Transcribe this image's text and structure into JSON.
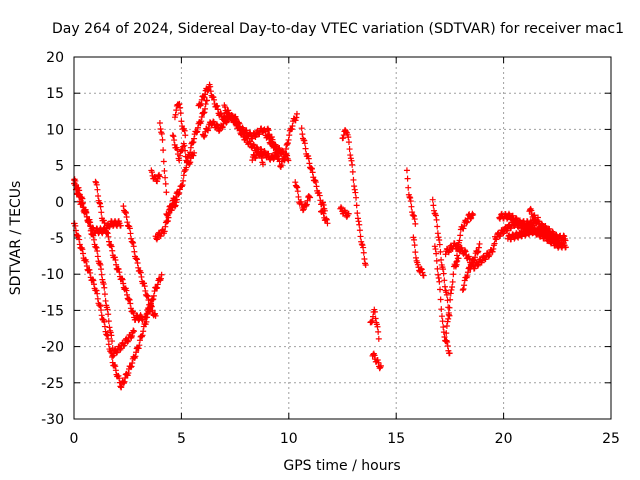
{
  "chart_data": {
    "type": "scatter",
    "title": "Day 264 of 2024, Sidereal Day-to-day VTEC variation (SDTVAR) for receiver mac1",
    "xlabel": "GPS time / hours",
    "ylabel": "SDTVAR / TECUs",
    "xlim": [
      0,
      25
    ],
    "ylim": [
      -30,
      20
    ],
    "xticks": [
      0,
      5,
      10,
      15,
      20,
      25
    ],
    "yticks": [
      -30,
      -25,
      -20,
      -15,
      -10,
      -5,
      0,
      5,
      10,
      15,
      20
    ],
    "grid": true,
    "marker": "+",
    "series": [
      {
        "name": "SDTVAR",
        "color": "#ff0000",
        "tracks": [
          {
            "t0": 0.0,
            "t1": 2.2,
            "pts": [
              [
                0.0,
                -3
              ],
              [
                0.5,
                -8
              ],
              [
                1.0,
                -12
              ],
              [
                1.5,
                -18
              ],
              [
                1.8,
                -22
              ],
              [
                2.2,
                -25.5
              ]
            ]
          },
          {
            "t0": 2.2,
            "t1": 3.6,
            "pts": [
              [
                2.2,
                -25.5
              ],
              [
                2.6,
                -23
              ],
              [
                3.0,
                -20
              ],
              [
                3.3,
                -17
              ],
              [
                3.6,
                -14
              ]
            ]
          },
          {
            "t0": 0.0,
            "t1": 1.8,
            "pts": [
              [
                0.0,
                3
              ],
              [
                0.3,
                1
              ],
              [
                0.7,
                -3
              ],
              [
                1.0,
                -6
              ],
              [
                1.3,
                -10
              ],
              [
                1.5,
                -14
              ],
              [
                1.8,
                -20
              ]
            ]
          },
          {
            "t0": 1.8,
            "t1": 2.8,
            "pts": [
              [
                1.8,
                -21
              ],
              [
                2.2,
                -20
              ],
              [
                2.5,
                -19
              ],
              [
                2.8,
                -18
              ]
            ]
          },
          {
            "t0": 0.0,
            "t1": 1.4,
            "pts": [
              [
                0.0,
                2.5
              ],
              [
                0.3,
                0
              ],
              [
                0.6,
                -2
              ],
              [
                0.9,
                -4
              ],
              [
                1.2,
                -4
              ],
              [
                1.4,
                -4
              ]
            ]
          },
          {
            "t0": 1.4,
            "t1": 2.2,
            "pts": [
              [
                1.4,
                -4
              ],
              [
                1.7,
                -3
              ],
              [
                2.0,
                -3
              ],
              [
                2.2,
                -3
              ]
            ]
          },
          {
            "t0": 1.0,
            "t1": 3.2,
            "pts": [
              [
                1.0,
                3
              ],
              [
                1.3,
                -2
              ],
              [
                1.6,
                -5
              ],
              [
                2.0,
                -9
              ],
              [
                2.5,
                -13
              ],
              [
                2.8,
                -16
              ],
              [
                3.2,
                -16
              ]
            ]
          },
          {
            "t0": 2.3,
            "t1": 3.8,
            "pts": [
              [
                2.3,
                -0.5
              ],
              [
                2.6,
                -4
              ],
              [
                2.9,
                -8
              ],
              [
                3.2,
                -11
              ],
              [
                3.5,
                -14
              ],
              [
                3.8,
                -16
              ]
            ]
          },
          {
            "t0": 3.3,
            "t1": 4.1,
            "pts": [
              [
                3.3,
                -16
              ],
              [
                3.6,
                -14
              ],
              [
                3.8,
                -12
              ],
              [
                4.1,
                -10
              ]
            ]
          },
          {
            "t0": 3.6,
            "t1": 4.0,
            "pts": [
              [
                3.6,
                4
              ],
              [
                3.8,
                3
              ],
              [
                4.0,
                3.5
              ]
            ]
          },
          {
            "t0": 4.0,
            "t1": 4.3,
            "pts": [
              [
                4.0,
                11
              ],
              [
                4.1,
                9
              ],
              [
                4.2,
                5
              ],
              [
                4.3,
                1
              ]
            ]
          },
          {
            "t0": 3.8,
            "t1": 4.8,
            "pts": [
              [
                3.8,
                -5
              ],
              [
                4.2,
                -4
              ],
              [
                4.5,
                -1
              ],
              [
                4.8,
                0
              ]
            ]
          },
          {
            "t0": 4.3,
            "t1": 6.2,
            "pts": [
              [
                4.3,
                -2
              ],
              [
                4.6,
                0
              ],
              [
                5.0,
                2
              ],
              [
                5.3,
                6
              ],
              [
                5.6,
                9
              ],
              [
                6.0,
                12
              ],
              [
                6.2,
                14
              ]
            ]
          },
          {
            "t0": 4.6,
            "t1": 5.6,
            "pts": [
              [
                4.6,
                9
              ],
              [
                4.9,
                6
              ],
              [
                5.1,
                8
              ],
              [
                5.3,
                5
              ],
              [
                5.6,
                7
              ]
            ]
          },
          {
            "t0": 4.7,
            "t1": 5.2,
            "pts": [
              [
                4.7,
                12
              ],
              [
                4.9,
                14
              ],
              [
                5.0,
                11
              ],
              [
                5.2,
                9
              ]
            ]
          },
          {
            "t0": 5.8,
            "t1": 7.2,
            "pts": [
              [
                5.8,
                13
              ],
              [
                6.1,
                15
              ],
              [
                6.3,
                16
              ],
              [
                6.5,
                14
              ],
              [
                6.8,
                12
              ],
              [
                7.2,
                11
              ]
            ]
          },
          {
            "t0": 6.0,
            "t1": 7.6,
            "pts": [
              [
                6.0,
                9
              ],
              [
                6.4,
                11
              ],
              [
                6.8,
                10
              ],
              [
                7.2,
                12
              ],
              [
                7.6,
                11
              ]
            ]
          },
          {
            "t0": 7.0,
            "t1": 8.8,
            "pts": [
              [
                7.0,
                13
              ],
              [
                7.5,
                11
              ],
              [
                7.9,
                9
              ],
              [
                8.2,
                8
              ],
              [
                8.6,
                7
              ],
              [
                8.8,
                5.5
              ]
            ]
          },
          {
            "t0": 7.4,
            "t1": 9.6,
            "pts": [
              [
                7.4,
                12
              ],
              [
                7.8,
                10
              ],
              [
                8.3,
                9
              ],
              [
                8.8,
                10
              ],
              [
                9.2,
                8
              ],
              [
                9.6,
                7
              ]
            ]
          },
          {
            "t0": 8.3,
            "t1": 10.0,
            "pts": [
              [
                8.3,
                6
              ],
              [
                8.7,
                7
              ],
              [
                9.2,
                6
              ],
              [
                9.6,
                7
              ],
              [
                10.0,
                6
              ]
            ]
          },
          {
            "t0": 9.0,
            "t1": 10.4,
            "pts": [
              [
                9.0,
                10
              ],
              [
                9.3,
                8
              ],
              [
                9.6,
                5
              ],
              [
                9.8,
                6
              ],
              [
                10.0,
                9
              ],
              [
                10.2,
                11
              ],
              [
                10.4,
                12
              ]
            ]
          },
          {
            "t0": 10.3,
            "t1": 11.0,
            "pts": [
              [
                10.3,
                3
              ],
              [
                10.5,
                0
              ],
              [
                10.7,
                -1
              ],
              [
                11.0,
                1
              ]
            ]
          },
          {
            "t0": 10.6,
            "t1": 11.7,
            "pts": [
              [
                10.6,
                10
              ],
              [
                10.8,
                7
              ],
              [
                11.0,
                5
              ],
              [
                11.3,
                2
              ],
              [
                11.5,
                0
              ],
              [
                11.7,
                -1
              ]
            ]
          },
          {
            "t0": 11.5,
            "t1": 11.8,
            "pts": [
              [
                11.5,
                -1
              ],
              [
                11.8,
                -3
              ]
            ]
          },
          {
            "t0": 12.4,
            "t1": 12.8,
            "pts": [
              [
                12.4,
                -1
              ],
              [
                12.6,
                -1.5
              ],
              [
                12.8,
                -2
              ]
            ]
          },
          {
            "t0": 12.5,
            "t1": 13.6,
            "pts": [
              [
                12.5,
                9
              ],
              [
                12.7,
                10
              ],
              [
                12.9,
                6
              ],
              [
                13.1,
                1
              ],
              [
                13.3,
                -4
              ],
              [
                13.6,
                -9
              ]
            ]
          },
          {
            "t0": 13.8,
            "t1": 14.2,
            "pts": [
              [
                13.8,
                -17
              ],
              [
                14.0,
                -15
              ],
              [
                14.2,
                -19
              ]
            ]
          },
          {
            "t0": 13.9,
            "t1": 14.3,
            "pts": [
              [
                13.9,
                -21
              ],
              [
                14.1,
                -22
              ],
              [
                14.3,
                -23
              ]
            ]
          },
          {
            "t0": 15.5,
            "t1": 15.9,
            "pts": [
              [
                15.5,
                4
              ],
              [
                15.6,
                1
              ],
              [
                15.8,
                -2
              ],
              [
                15.9,
                -3
              ]
            ]
          },
          {
            "t0": 15.8,
            "t1": 16.3,
            "pts": [
              [
                15.8,
                -5
              ],
              [
                16.0,
                -9
              ],
              [
                16.3,
                -10
              ]
            ]
          },
          {
            "t0": 16.8,
            "t1": 17.5,
            "pts": [
              [
                16.8,
                -6
              ],
              [
                17.0,
                -11
              ],
              [
                17.2,
                -18
              ],
              [
                17.5,
                -21
              ]
            ]
          },
          {
            "t0": 16.7,
            "t1": 17.5,
            "pts": [
              [
                16.7,
                0
              ],
              [
                16.9,
                -3
              ],
              [
                17.1,
                -8
              ],
              [
                17.3,
                -12
              ],
              [
                17.5,
                -16
              ]
            ]
          },
          {
            "t0": 17.3,
            "t1": 17.9,
            "pts": [
              [
                17.3,
                -19
              ],
              [
                17.5,
                -14
              ],
              [
                17.7,
                -9
              ],
              [
                17.9,
                -8
              ]
            ]
          },
          {
            "t0": 17.8,
            "t1": 18.6,
            "pts": [
              [
                17.8,
                -8
              ],
              [
                18.0,
                -4
              ],
              [
                18.2,
                -3
              ],
              [
                18.4,
                -2
              ],
              [
                18.6,
                -2
              ]
            ]
          },
          {
            "t0": 18.1,
            "t1": 18.9,
            "pts": [
              [
                18.1,
                -12
              ],
              [
                18.3,
                -10
              ],
              [
                18.6,
                -8
              ],
              [
                18.9,
                -6
              ]
            ]
          },
          {
            "t0": 17.3,
            "t1": 19.6,
            "pts": [
              [
                17.3,
                -7
              ],
              [
                17.7,
                -6
              ],
              [
                18.2,
                -7
              ],
              [
                18.6,
                -9
              ],
              [
                19.0,
                -8
              ],
              [
                19.4,
                -7
              ],
              [
                19.6,
                -6
              ]
            ]
          },
          {
            "t0": 19.6,
            "t1": 22.5,
            "pts": [
              [
                19.6,
                -5
              ],
              [
                20.0,
                -4
              ],
              [
                20.5,
                -3
              ],
              [
                21.0,
                -3.5
              ],
              [
                21.5,
                -4
              ],
              [
                22.0,
                -4.5
              ],
              [
                22.5,
                -5
              ]
            ]
          },
          {
            "t0": 19.8,
            "t1": 21.6,
            "pts": [
              [
                19.8,
                -2
              ],
              [
                20.3,
                -2
              ],
              [
                20.8,
                -3
              ],
              [
                21.3,
                -3
              ],
              [
                21.6,
                -2.5
              ]
            ]
          },
          {
            "t0": 21.2,
            "t1": 22.9,
            "pts": [
              [
                21.2,
                -1
              ],
              [
                21.6,
                -3
              ],
              [
                22.1,
                -4
              ],
              [
                22.5,
                -5
              ],
              [
                22.9,
                -5
              ]
            ]
          },
          {
            "t0": 20.2,
            "t1": 22.9,
            "pts": [
              [
                20.2,
                -5
              ],
              [
                20.8,
                -4.5
              ],
              [
                21.4,
                -4
              ],
              [
                22.0,
                -5
              ],
              [
                22.5,
                -6
              ],
              [
                22.9,
                -6
              ]
            ]
          }
        ]
      }
    ]
  }
}
